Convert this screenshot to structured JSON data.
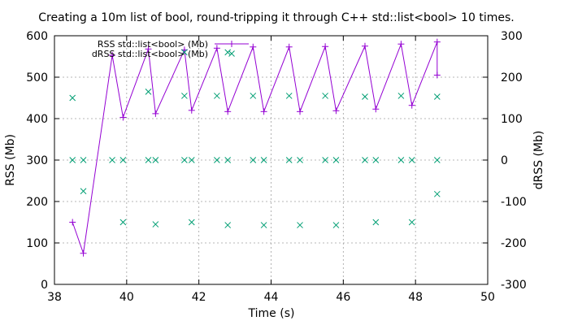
{
  "chart_data": {
    "type": "line",
    "title": "Creating a 10m list of bool, round-tripping it through C++ std::list<bool> 10 times.",
    "xlabel": "Time (s)",
    "ylabel": "RSS (Mb)",
    "y2label": "dRSS (Mb)",
    "xlim": [
      38,
      50
    ],
    "ylim": [
      0,
      600
    ],
    "y2lim": [
      -300,
      300
    ],
    "xticks": [
      38,
      40,
      42,
      44,
      46,
      48,
      50
    ],
    "yticks": [
      0,
      100,
      200,
      300,
      400,
      500,
      600
    ],
    "y2ticks": [
      -300,
      -200,
      -100,
      0,
      100,
      200,
      300
    ],
    "grid": true,
    "legend_position": "top-left",
    "series": [
      {
        "name": "RSS std::list<bool> (Mb)",
        "axis": "left",
        "style": "linespoints",
        "marker": "plus",
        "color": "#9400d3",
        "points": [
          [
            38.5,
            150
          ],
          [
            38.8,
            75
          ],
          [
            39.6,
            553
          ],
          [
            39.9,
            403
          ],
          [
            40.6,
            568
          ],
          [
            40.8,
            412
          ],
          [
            41.6,
            566
          ],
          [
            41.8,
            420
          ],
          [
            42.5,
            570
          ],
          [
            42.8,
            417
          ],
          [
            43.5,
            573
          ],
          [
            43.8,
            417
          ],
          [
            44.5,
            573
          ],
          [
            44.8,
            417
          ],
          [
            45.5,
            574
          ],
          [
            45.8,
            419
          ],
          [
            46.6,
            575
          ],
          [
            46.9,
            423
          ],
          [
            47.6,
            580
          ],
          [
            47.9,
            432
          ],
          [
            48.6,
            585
          ],
          [
            48.6,
            505
          ]
        ]
      },
      {
        "name": "dRSS std::list<bool> (Mb)",
        "axis": "right",
        "style": "points",
        "marker": "cross",
        "color": "#009e73",
        "points": [
          [
            38.5,
            150
          ],
          [
            38.5,
            0
          ],
          [
            38.8,
            0
          ],
          [
            38.8,
            -75
          ],
          [
            39.6,
            0
          ],
          [
            39.9,
            0
          ],
          [
            39.9,
            -150
          ],
          [
            40.6,
            165
          ],
          [
            40.6,
            0
          ],
          [
            40.8,
            0
          ],
          [
            40.8,
            -155
          ],
          [
            41.6,
            155
          ],
          [
            41.6,
            0
          ],
          [
            41.8,
            0
          ],
          [
            41.8,
            -150
          ],
          [
            42.5,
            155
          ],
          [
            42.5,
            0
          ],
          [
            42.8,
            0
          ],
          [
            42.8,
            -157
          ],
          [
            43.5,
            155
          ],
          [
            43.5,
            0
          ],
          [
            43.8,
            0
          ],
          [
            43.8,
            -157
          ],
          [
            44.5,
            155
          ],
          [
            44.5,
            0
          ],
          [
            44.8,
            0
          ],
          [
            44.8,
            -157
          ],
          [
            45.5,
            155
          ],
          [
            45.5,
            0
          ],
          [
            45.8,
            0
          ],
          [
            45.8,
            -157
          ],
          [
            46.6,
            153
          ],
          [
            46.6,
            0
          ],
          [
            46.9,
            0
          ],
          [
            46.9,
            -150
          ],
          [
            47.6,
            155
          ],
          [
            47.6,
            0
          ],
          [
            47.9,
            0
          ],
          [
            47.9,
            -150
          ],
          [
            48.6,
            153
          ],
          [
            48.6,
            0
          ],
          [
            48.6,
            -82
          ],
          [
            41.6,
            260
          ],
          [
            42.8,
            260
          ]
        ]
      }
    ]
  }
}
